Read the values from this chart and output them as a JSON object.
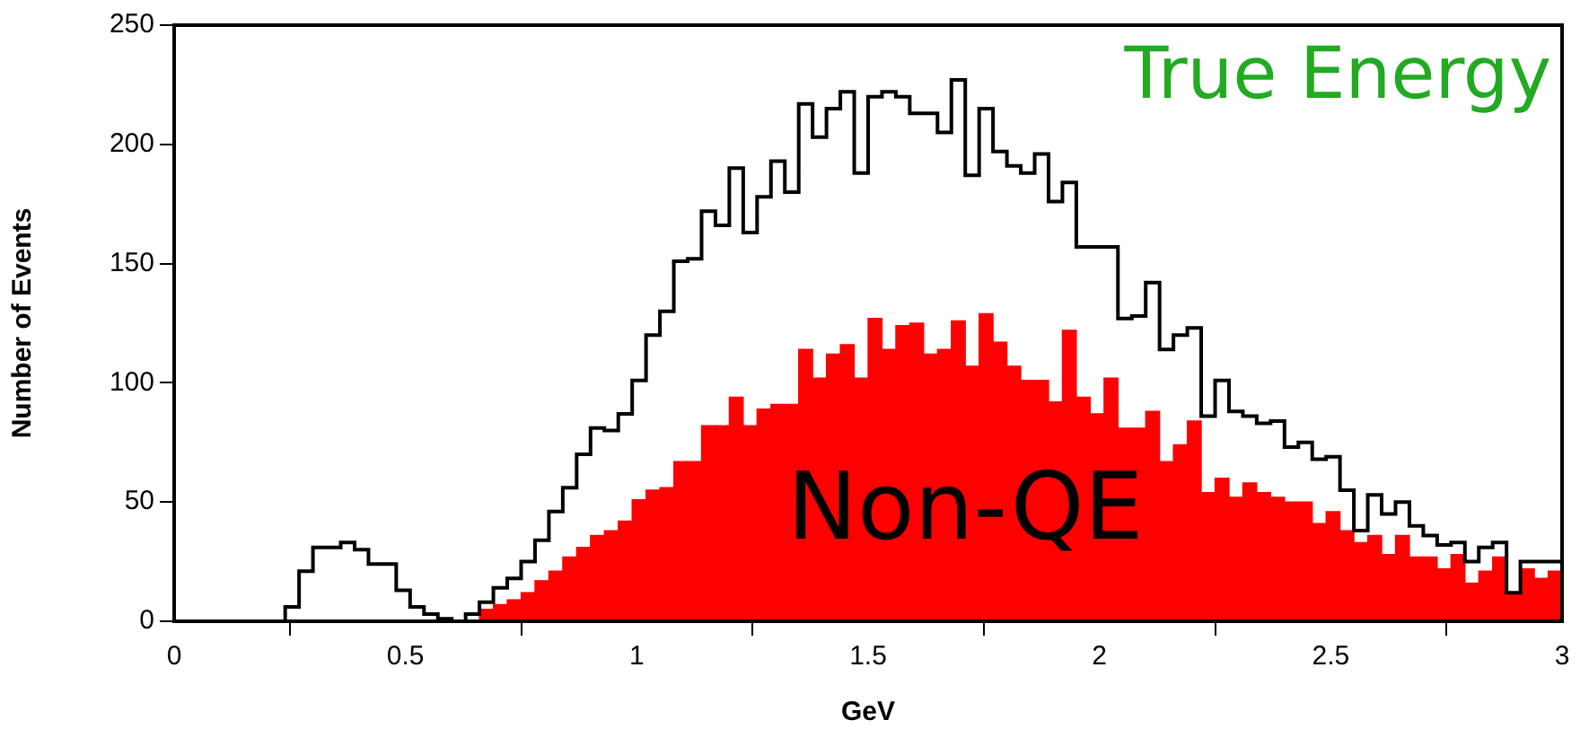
{
  "chart_data": {
    "type": "histogram",
    "title": "True Energy",
    "xlabel": "GeV",
    "ylabel": "Number of Events",
    "bins": [
      0,
      0.03,
      0.06,
      0.09,
      0.12,
      0.15,
      0.18,
      0.21,
      0.24,
      0.27,
      0.3,
      0.33,
      0.36,
      0.39,
      0.42,
      0.45,
      0.48,
      0.51,
      0.54,
      0.57,
      0.6,
      0.63,
      0.66,
      0.69,
      0.72,
      0.75,
      0.78,
      0.81,
      0.84,
      0.87,
      0.9,
      0.93,
      0.96,
      0.99,
      1.02,
      1.05,
      1.08,
      1.11,
      1.14,
      1.17,
      1.2,
      1.23,
      1.26,
      1.29,
      1.32,
      1.35,
      1.38,
      1.41,
      1.44,
      1.47,
      1.5,
      1.53,
      1.56,
      1.59,
      1.62,
      1.65,
      1.68,
      1.71,
      1.74,
      1.77,
      1.8,
      1.83,
      1.86,
      1.89,
      1.92,
      1.95,
      1.98,
      2.01,
      2.04,
      2.07,
      2.1,
      2.13,
      2.16,
      2.19,
      2.22,
      2.25,
      2.28,
      2.31,
      2.34,
      2.37,
      2.4,
      2.43,
      2.46,
      2.49,
      2.52,
      2.55,
      2.58,
      2.61,
      2.64,
      2.67,
      2.7,
      2.73,
      2.76,
      2.79,
      2.82,
      2.85,
      2.88,
      2.91,
      2.94,
      2.97,
      3
    ],
    "series": [
      {
        "type": "step",
        "color": "#000000",
        "x": [
          0.015,
          0.045,
          0.075,
          0.105,
          0.135,
          0.165,
          0.195,
          0.225,
          0.255,
          0.285,
          0.315,
          0.345,
          0.375,
          0.405,
          0.435,
          0.465,
          0.495,
          0.525,
          0.555,
          0.585,
          0.615,
          0.645,
          0.675,
          0.705,
          0.735,
          0.765,
          0.795,
          0.825,
          0.855,
          0.885,
          0.915,
          0.945,
          0.975,
          1.005,
          1.035,
          1.065,
          1.095,
          1.125,
          1.155,
          1.185,
          1.215,
          1.245,
          1.275,
          1.305,
          1.335,
          1.365,
          1.395,
          1.425,
          1.455,
          1.485,
          1.515,
          1.545,
          1.575,
          1.605,
          1.635,
          1.665,
          1.695,
          1.725,
          1.755,
          1.785,
          1.815,
          1.845,
          1.875,
          1.905,
          1.935,
          1.965,
          1.995,
          2.025,
          2.055,
          2.085,
          2.115,
          2.145,
          2.175,
          2.205,
          2.235,
          2.265,
          2.295,
          2.325,
          2.355,
          2.385,
          2.415,
          2.445,
          2.475,
          2.505,
          2.535,
          2.565,
          2.595,
          2.625,
          2.655,
          2.685,
          2.715,
          2.745,
          2.775,
          2.805,
          2.835,
          2.865,
          2.895,
          2.925,
          2.955,
          2.985
        ],
        "values": [
          0,
          0,
          0,
          0,
          0,
          0,
          0,
          0,
          6,
          21,
          31,
          31,
          33,
          30,
          24,
          24,
          13,
          6,
          3,
          1,
          0,
          3,
          8,
          14,
          18,
          25,
          34,
          46,
          56,
          70,
          81,
          80,
          87,
          101,
          120,
          130,
          151,
          152,
          172,
          166,
          190,
          163,
          178,
          193,
          180,
          217,
          203,
          215,
          222,
          188,
          220,
          222,
          220,
          213,
          213,
          205,
          227,
          187,
          215,
          197,
          191,
          188,
          196,
          176,
          184,
          157,
          157,
          157,
          127,
          128,
          142,
          114,
          120,
          123,
          86,
          101,
          88,
          86,
          83,
          84,
          73,
          75,
          68,
          69,
          55,
          38,
          53,
          45,
          50,
          40,
          36,
          32,
          33,
          25,
          31,
          33,
          12,
          25,
          25,
          25
        ]
      },
      {
        "color": "#ff0000",
        "values": [
          0,
          0,
          0,
          0,
          0,
          0,
          0,
          0,
          0,
          0,
          0,
          0,
          0,
          0,
          0,
          null,
          null,
          0,
          0,
          0,
          0,
          null,
          5,
          7,
          9,
          12,
          17,
          21,
          27,
          31,
          36,
          38,
          42,
          51,
          55,
          56,
          67,
          67,
          82,
          82,
          94,
          82,
          89,
          91,
          91,
          114,
          102,
          112,
          116,
          102,
          127,
          114,
          124,
          125,
          112,
          114,
          126,
          107,
          129,
          117,
          107,
          101,
          101,
          92,
          122,
          94,
          87,
          102,
          81,
          81,
          88,
          67,
          74,
          84,
          54,
          60,
          52,
          58,
          54,
          52,
          50,
          50,
          41,
          46,
          38,
          33,
          36,
          28,
          36,
          27,
          27,
          22,
          28,
          16,
          21,
          27,
          12,
          22,
          18,
          21
        ]
      }
    ],
    "xlim": [
      0,
      3
    ],
    "xticks": [
      0,
      0.5,
      1,
      1.5,
      2,
      2.5,
      3
    ],
    "ylim": [
      0,
      250
    ],
    "yticks": [
      0,
      50,
      100,
      150,
      200,
      250
    ],
    "annotations": [
      "Non-QE"
    ],
    "grid": false,
    "legend": false
  }
}
